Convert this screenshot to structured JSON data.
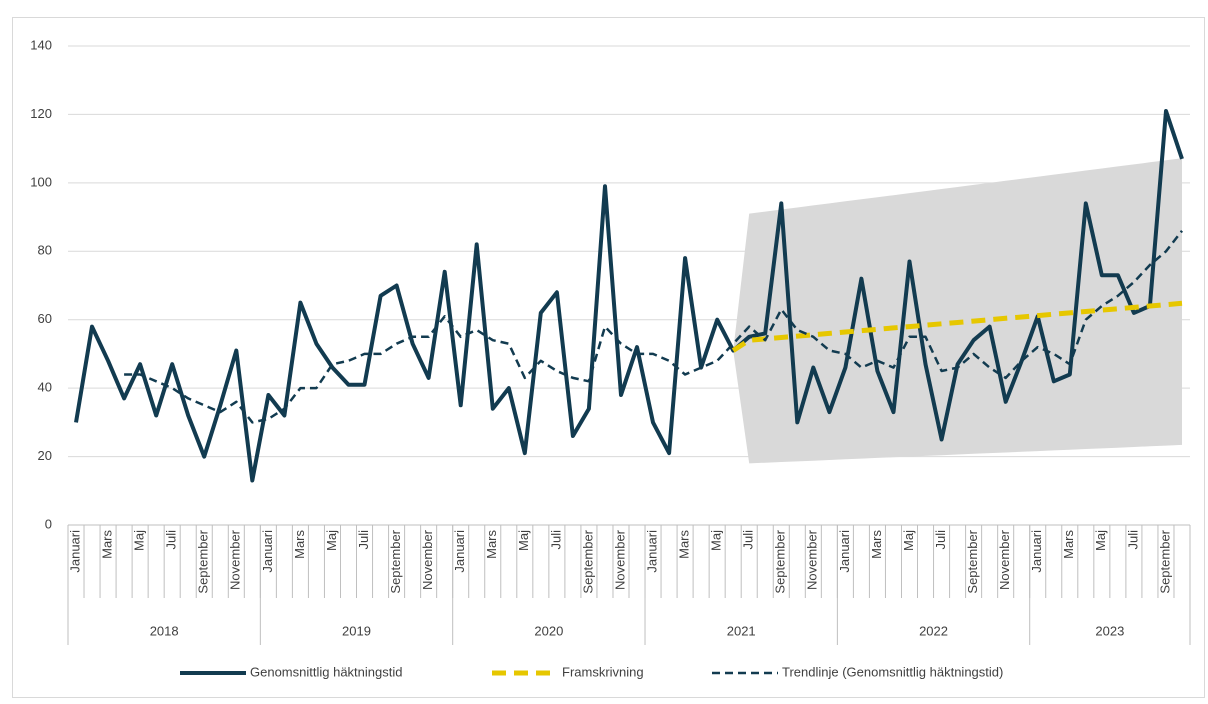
{
  "chart_data": {
    "type": "line",
    "categories": [
      "Januari",
      null,
      "Mars",
      null,
      "Maj",
      null,
      "Juli",
      null,
      "September",
      null,
      "November",
      null,
      "Januari",
      null,
      "Mars",
      null,
      "Maj",
      null,
      "Juli",
      null,
      "September",
      null,
      "November",
      null,
      "Januari",
      null,
      "Mars",
      null,
      "Maj",
      null,
      "Juli",
      null,
      "September",
      null,
      "November",
      null,
      "Januari",
      null,
      "Mars",
      null,
      "Maj",
      null,
      "Juli",
      null,
      "September",
      null,
      "November",
      null,
      "Januari",
      null,
      "Mars",
      null,
      "Maj",
      null,
      "Juli",
      null,
      "September",
      null,
      "November",
      null,
      "Januari",
      null,
      "Mars",
      null,
      "Maj",
      null,
      "Juli",
      null,
      "September",
      null
    ],
    "groups": [
      {
        "label": "2018",
        "span": 12
      },
      {
        "label": "2019",
        "span": 12
      },
      {
        "label": "2020",
        "span": 12
      },
      {
        "label": "2021",
        "span": 12
      },
      {
        "label": "2022",
        "span": 12
      },
      {
        "label": "2023",
        "span": 10
      }
    ],
    "ylim": [
      0,
      140
    ],
    "yticks": [
      0,
      20,
      40,
      60,
      80,
      100,
      120,
      140
    ],
    "grid": true,
    "legend": "bottom",
    "band": {
      "color": "#d9d9d9",
      "lower": [
        null,
        null,
        null,
        null,
        null,
        null,
        null,
        null,
        null,
        null,
        null,
        null,
        null,
        null,
        null,
        null,
        null,
        null,
        null,
        null,
        null,
        null,
        null,
        null,
        null,
        null,
        null,
        null,
        null,
        null,
        null,
        null,
        null,
        null,
        null,
        null,
        null,
        null,
        null,
        null,
        null,
        51,
        18,
        18.2,
        18.4,
        18.6,
        18.8,
        19,
        19.2,
        19.4,
        19.6,
        19.8,
        20,
        20.2,
        20.4,
        20.6,
        20.8,
        21,
        21.2,
        21.4,
        21.6,
        21.8,
        22,
        22.2,
        22.4,
        22.6,
        22.8,
        23,
        23.2,
        23.4
      ],
      "upper": [
        null,
        null,
        null,
        null,
        null,
        null,
        null,
        null,
        null,
        null,
        null,
        null,
        null,
        null,
        null,
        null,
        null,
        null,
        null,
        null,
        null,
        null,
        null,
        null,
        null,
        null,
        null,
        null,
        null,
        null,
        null,
        null,
        null,
        null,
        null,
        null,
        null,
        null,
        null,
        null,
        null,
        51,
        91,
        91.6,
        92.2,
        92.8,
        93.4,
        94,
        94.6,
        95.2,
        95.8,
        96.4,
        97,
        97.6,
        98.2,
        98.8,
        99.4,
        100,
        100.6,
        101.2,
        101.8,
        102.4,
        103,
        103.6,
        104.2,
        104.8,
        105.4,
        106,
        106.6,
        107.2
      ]
    },
    "series": [
      {
        "name": "Genomsnittlig häktningstid",
        "color": "#123b50",
        "style": "solid",
        "values": [
          30,
          58,
          48,
          37,
          47,
          32,
          47,
          32,
          20,
          35,
          51,
          13,
          38,
          32,
          65,
          53,
          46,
          41,
          41,
          67,
          70,
          53,
          43,
          74,
          35,
          82,
          34,
          40,
          21,
          62,
          68,
          26,
          34,
          99,
          38,
          52,
          30,
          21,
          78,
          46,
          60,
          51,
          55,
          56,
          94,
          30,
          46,
          33,
          46,
          72,
          45,
          33,
          77,
          47,
          25,
          47,
          54,
          58,
          36,
          48,
          61,
          42,
          44,
          94,
          73,
          73,
          62,
          64,
          121,
          107
        ]
      },
      {
        "name": "Framskrivning",
        "color": "#e6c700",
        "style": "dashed-thick",
        "values": [
          null,
          null,
          null,
          null,
          null,
          null,
          null,
          null,
          null,
          null,
          null,
          null,
          null,
          null,
          null,
          null,
          null,
          null,
          null,
          null,
          null,
          null,
          null,
          null,
          null,
          null,
          null,
          null,
          null,
          null,
          null,
          null,
          null,
          null,
          null,
          null,
          null,
          null,
          null,
          null,
          null,
          51,
          54,
          54.4,
          54.8,
          55.2,
          55.6,
          56,
          56.4,
          56.8,
          57.2,
          57.6,
          58,
          58.4,
          58.8,
          59.2,
          59.6,
          60,
          60.4,
          60.8,
          61.2,
          61.6,
          62,
          62.4,
          62.8,
          63.2,
          63.6,
          64,
          64.4,
          64.8
        ]
      },
      {
        "name": "Trendlinje (Genomsnittlig häktningstid)",
        "color": "#123b50",
        "style": "dashed",
        "values": [
          null,
          null,
          null,
          44,
          44,
          42,
          40,
          37,
          35,
          33,
          36,
          30,
          31,
          34,
          40,
          40,
          47,
          48,
          50,
          50,
          53,
          55,
          55,
          61,
          55,
          57,
          54,
          53,
          43,
          48,
          45,
          43,
          42,
          58,
          53,
          50,
          50,
          48,
          44,
          46,
          48,
          53,
          58,
          54,
          63,
          57,
          55,
          51,
          50,
          46,
          48,
          46,
          55,
          55,
          45,
          46,
          50,
          46,
          43,
          48,
          52,
          50,
          47,
          60,
          64,
          67,
          71,
          76,
          80,
          86
        ]
      }
    ]
  }
}
